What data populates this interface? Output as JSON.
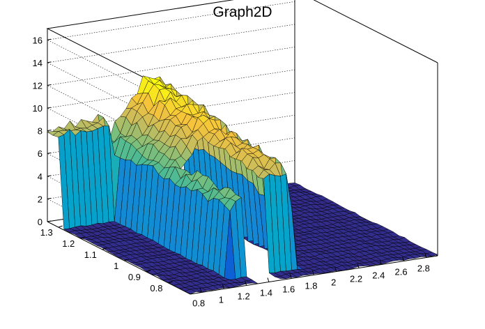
{
  "chart_data": {
    "type": "surface",
    "title": "Graph2D",
    "xlabel": "",
    "ylabel": "",
    "zlabel": "",
    "xlim": [
      0.7,
      2.9
    ],
    "ylim": [
      0.7,
      1.35
    ],
    "zlim": [
      0,
      17
    ],
    "x_ticks": [
      "0.8",
      "1",
      "1.2",
      "1.4",
      "1.6",
      "1.8",
      "2",
      "2.2",
      "2.4",
      "2.6",
      "2.8"
    ],
    "y_ticks": [
      "0.8",
      "0.9",
      "1",
      "1.1",
      "1.2",
      "1.3"
    ],
    "z_ticks": [
      "0",
      "2",
      "4",
      "6",
      "8",
      "10",
      "12",
      "14",
      "16"
    ],
    "grid": true,
    "palette": [
      "#352a87",
      "#0d5ed5",
      "#1487d4",
      "#06a4ca",
      "#2eb7a4",
      "#7cbf7b",
      "#c6bc5e",
      "#f6c33c",
      "#f9fb0e"
    ],
    "surface": {
      "plateau_x_range": [
        1.2,
        1.7
      ],
      "plateau_y_range": [
        0.8,
        1.3
      ],
      "plateau_height": [
        6,
        11
      ],
      "background_height": 0,
      "edge_ridge_height": 8,
      "hole_x_range": [
        1.32,
        1.52
      ],
      "hole_y_range": [
        0.7,
        1.05
      ]
    }
  }
}
